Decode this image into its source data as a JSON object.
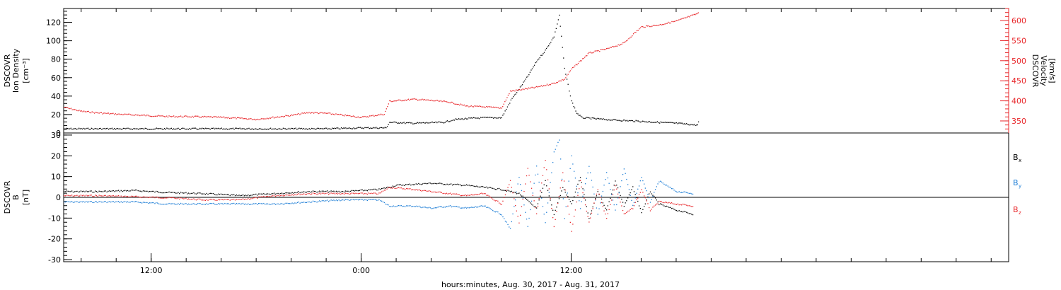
{
  "chart_data": [
    {
      "type": "scatter",
      "title": "",
      "xlabel": "",
      "ylabel_left_line1": "DSCOVR",
      "ylabel_left_line2": "Ion Density",
      "ylabel_left_units": "[cm⁻³]",
      "ylabel_right_line1": "DSCOVR",
      "ylabel_right_line2": "Velocity",
      "ylabel_right_units": "[km/s]",
      "x_range_hours": [
        7,
        61
      ],
      "ylim_left": [
        0,
        135
      ],
      "ylim_right": [
        320,
        630
      ],
      "left_ticks": [
        0,
        20,
        40,
        60,
        80,
        100,
        120
      ],
      "right_ticks": [
        350,
        400,
        450,
        500,
        550,
        600
      ],
      "series": [
        {
          "axis": "left",
          "color": "#000000",
          "points": [
            [
              7,
              5
            ],
            [
              10,
              5
            ],
            [
              13,
              5
            ],
            [
              16,
              5
            ],
            [
              19,
              5
            ],
            [
              22,
              5
            ],
            [
              24,
              6
            ],
            [
              25.4,
              6
            ],
            [
              25.6,
              12
            ],
            [
              27,
              11
            ],
            [
              28.7,
              12
            ],
            [
              29.3,
              15
            ],
            [
              30,
              16
            ],
            [
              31,
              17
            ],
            [
              32,
              17
            ],
            [
              32.6,
              38
            ],
            [
              33,
              48
            ],
            [
              33.5,
              62
            ],
            [
              34,
              78
            ],
            [
              34.5,
              90
            ],
            [
              35,
              105
            ],
            [
              35.3,
              128
            ],
            [
              35.6,
              70
            ],
            [
              36,
              35
            ],
            [
              36.3,
              22
            ],
            [
              36.6,
              17
            ],
            [
              38,
              15
            ],
            [
              40,
              13
            ],
            [
              42,
              11
            ],
            [
              43.2,
              9
            ],
            [
              43.3,
              16
            ]
          ]
        },
        {
          "axis": "right",
          "color": "#e8262a",
          "points": [
            [
              7,
              385
            ],
            [
              8,
              375
            ],
            [
              9,
              371
            ],
            [
              10,
              368
            ],
            [
              11,
              366
            ],
            [
              12,
              364
            ],
            [
              13,
              362
            ],
            [
              14,
              362
            ],
            [
              16,
              360
            ],
            [
              18,
              355
            ],
            [
              19,
              360
            ],
            [
              20,
              365
            ],
            [
              21,
              372
            ],
            [
              22,
              370
            ],
            [
              23,
              365
            ],
            [
              24,
              360
            ],
            [
              25.3,
              368
            ],
            [
              25.6,
              400
            ],
            [
              27,
              405
            ],
            [
              28,
              402
            ],
            [
              29,
              398
            ],
            [
              30,
              388
            ],
            [
              31,
              386
            ],
            [
              32,
              383
            ],
            [
              32.5,
              425
            ],
            [
              34,
              435
            ],
            [
              35,
              445
            ],
            [
              35.6,
              455
            ],
            [
              36,
              480
            ],
            [
              36.5,
              500
            ],
            [
              37,
              520
            ],
            [
              38,
              530
            ],
            [
              39,
              545
            ],
            [
              39.6,
              570
            ],
            [
              40,
              585
            ],
            [
              41,
              590
            ],
            [
              42,
              600
            ],
            [
              43,
              615
            ],
            [
              43.3,
              620
            ]
          ]
        }
      ]
    },
    {
      "type": "scatter",
      "title": "",
      "xlabel": "hours:minutes, Aug. 30, 2017 - Aug. 31, 2017",
      "ylabel_line1": "DSCOVR",
      "ylabel_line2": "B",
      "ylabel_units": "[nT]",
      "x_range_hours": [
        7,
        61
      ],
      "ylim": [
        -31,
        31
      ],
      "y_ticks": [
        -30,
        -20,
        -10,
        0,
        10,
        20,
        30
      ],
      "x_ticks": [
        "12:00",
        "0:00",
        "12:00"
      ],
      "x_tick_hours": [
        12,
        24,
        36
      ],
      "legend": [
        "B",
        "B",
        "B"
      ],
      "legend_subscripts": [
        "x",
        "y",
        "z"
      ],
      "series": [
        {
          "color": "#000000",
          "points": [
            [
              7,
              3
            ],
            [
              9,
              3
            ],
            [
              11,
              3.5
            ],
            [
              13,
              2.5
            ],
            [
              15,
              2
            ],
            [
              17,
              1
            ],
            [
              19,
              2
            ],
            [
              21,
              3
            ],
            [
              23,
              3
            ],
            [
              25,
              4
            ],
            [
              26,
              6
            ],
            [
              28,
              7
            ],
            [
              30,
              6
            ],
            [
              31,
              5
            ],
            [
              32,
              4
            ],
            [
              33,
              2
            ],
            [
              34,
              -5
            ],
            [
              34.5,
              8
            ],
            [
              35,
              -8
            ],
            [
              35.5,
              5
            ],
            [
              36,
              -3
            ],
            [
              36.5,
              10
            ],
            [
              37,
              -10
            ],
            [
              37.5,
              3
            ],
            [
              38,
              -6
            ],
            [
              38.5,
              8
            ],
            [
              39,
              -4
            ],
            [
              39.5,
              5
            ],
            [
              40,
              -7
            ],
            [
              40.5,
              3
            ],
            [
              41,
              -3
            ],
            [
              42,
              -6
            ],
            [
              43,
              -8
            ]
          ]
        },
        {
          "color": "#1e7ed6",
          "points": [
            [
              7,
              -2
            ],
            [
              9,
              -2
            ],
            [
              11,
              -2
            ],
            [
              13,
              -3
            ],
            [
              15,
              -3
            ],
            [
              17,
              -3
            ],
            [
              19,
              -3
            ],
            [
              21,
              -2
            ],
            [
              23,
              -1
            ],
            [
              25,
              -1
            ],
            [
              25.6,
              -4
            ],
            [
              27,
              -4
            ],
            [
              28,
              -5
            ],
            [
              29,
              -4
            ],
            [
              30,
              -5
            ],
            [
              31,
              -4
            ],
            [
              32,
              -8
            ],
            [
              32.5,
              -15
            ],
            [
              33,
              10
            ],
            [
              33.5,
              -14
            ],
            [
              34,
              15
            ],
            [
              34.5,
              -12
            ],
            [
              35,
              22
            ],
            [
              35.3,
              28
            ],
            [
              35.6,
              -10
            ],
            [
              36,
              20
            ],
            [
              36.5,
              -5
            ],
            [
              37,
              15
            ],
            [
              37.5,
              -8
            ],
            [
              38,
              12
            ],
            [
              38.5,
              -6
            ],
            [
              39,
              14
            ],
            [
              39.5,
              -4
            ],
            [
              40,
              10
            ],
            [
              40.5,
              -2
            ],
            [
              41,
              8
            ],
            [
              42,
              3
            ],
            [
              43,
              2
            ]
          ]
        },
        {
          "color": "#e8262a",
          "points": [
            [
              7,
              1
            ],
            [
              9,
              1
            ],
            [
              11,
              0.5
            ],
            [
              13,
              0
            ],
            [
              15,
              -1
            ],
            [
              17,
              -1
            ],
            [
              19,
              1
            ],
            [
              21,
              2
            ],
            [
              23,
              2
            ],
            [
              25,
              2
            ],
            [
              25.6,
              5
            ],
            [
              27,
              4
            ],
            [
              28,
              3
            ],
            [
              29,
              2
            ],
            [
              30,
              1
            ],
            [
              31,
              2
            ],
            [
              32,
              -3
            ],
            [
              32.5,
              8
            ],
            [
              33,
              -12
            ],
            [
              33.5,
              14
            ],
            [
              34,
              -8
            ],
            [
              34.5,
              18
            ],
            [
              35,
              -14
            ],
            [
              35.5,
              12
            ],
            [
              36,
              -16
            ],
            [
              36.5,
              8
            ],
            [
              37,
              -12
            ],
            [
              37.5,
              4
            ],
            [
              38,
              -10
            ],
            [
              38.5,
              6
            ],
            [
              39,
              -8
            ],
            [
              39.5,
              -5
            ],
            [
              40,
              4
            ],
            [
              40.5,
              -6
            ],
            [
              41,
              -2
            ],
            [
              42,
              -3
            ],
            [
              43,
              -4
            ]
          ]
        }
      ]
    }
  ]
}
